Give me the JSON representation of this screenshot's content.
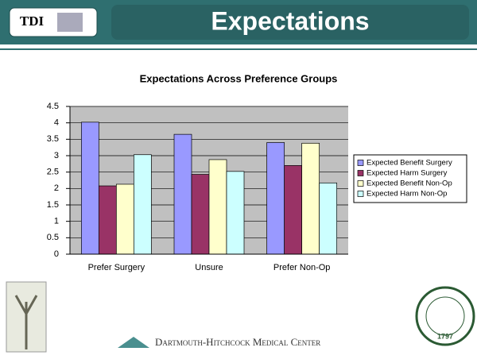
{
  "header": {
    "logo": "TDI",
    "title": "Expectations"
  },
  "chart_data": {
    "type": "bar",
    "title": "Expectations Across Preference Groups",
    "categories": [
      "Prefer Surgery",
      "Unsure",
      "Prefer Non-Op"
    ],
    "series": [
      {
        "name": "Expected Benefit Surgery",
        "color": "#9999ff",
        "values": [
          4.02,
          3.65,
          3.4
        ]
      },
      {
        "name": "Expected Harm  Surgery",
        "color": "#993366",
        "values": [
          2.08,
          2.43,
          2.7
        ]
      },
      {
        "name": "Expected Benefit Non-Op",
        "color": "#ffffcc",
        "values": [
          2.13,
          2.88,
          3.38
        ]
      },
      {
        "name": "Expected Harm Non-Op",
        "color": "#ccffff",
        "values": [
          3.03,
          2.52,
          2.17
        ]
      }
    ],
    "ylim": [
      0,
      4.5
    ],
    "yticks": [
      0,
      0.5,
      1,
      1.5,
      2,
      2.5,
      3,
      3.5,
      4,
      4.5
    ],
    "grid": true,
    "legend": "right"
  },
  "footer": {
    "text": "Dartmouth-Hitchcock Medical Center",
    "seal_year": "1797"
  }
}
